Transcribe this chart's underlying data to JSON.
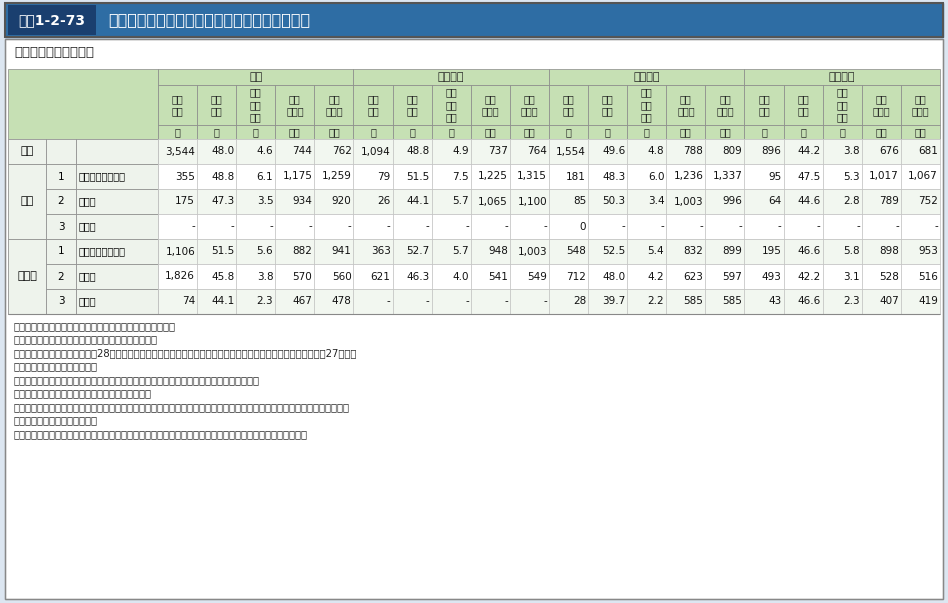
{
  "title": "図表1-2-73",
  "title_text": "職員１人当たり給与額（時給で支払われる者）",
  "subtitle": "＜放課後児童クラブ＞",
  "col_groups": [
    "全体",
    "公立公営",
    "公立民営",
    "民立民営"
  ],
  "col_subheaders": [
    "集計\n人数",
    "平均\n年齢",
    "平均\n勤続\n年数",
    "年間\n勤務量",
    "年間\n支給額"
  ],
  "col_units": [
    "人",
    "歳",
    "年",
    "時間",
    "千円"
  ],
  "main_row": {
    "label": "全体",
    "values": [
      [
        "3,544",
        "48.0",
        "4.6",
        "744",
        "762"
      ],
      [
        "1,094",
        "48.8",
        "4.9",
        "737",
        "764"
      ],
      [
        "1,554",
        "49.6",
        "4.8",
        "788",
        "809"
      ],
      [
        "896",
        "44.2",
        "3.8",
        "676",
        "681"
      ]
    ]
  },
  "sections": [
    {
      "label": "常勤",
      "sub_rows": [
        {
          "num": "1",
          "label": "放課後児童支援員",
          "values": [
            [
              "355",
              "48.8",
              "6.1",
              "1,175",
              "1,259"
            ],
            [
              "79",
              "51.5",
              "7.5",
              "1,225",
              "1,315"
            ],
            [
              "181",
              "48.3",
              "6.0",
              "1,236",
              "1,337"
            ],
            [
              "95",
              "47.5",
              "5.3",
              "1,017",
              "1,067"
            ]
          ]
        },
        {
          "num": "2",
          "label": "補助員",
          "values": [
            [
              "175",
              "47.3",
              "3.5",
              "934",
              "920"
            ],
            [
              "26",
              "44.1",
              "5.7",
              "1,065",
              "1,100"
            ],
            [
              "85",
              "50.3",
              "3.4",
              "1,003",
              "996"
            ],
            [
              "64",
              "44.6",
              "2.8",
              "789",
              "752"
            ]
          ]
        },
        {
          "num": "3",
          "label": "その他",
          "values": [
            [
              "-",
              "-",
              "-",
              "-",
              "-"
            ],
            [
              "-",
              "-",
              "-",
              "-",
              "-"
            ],
            [
              "0",
              "-",
              "-",
              "-",
              "-"
            ],
            [
              "-",
              "-",
              "-",
              "-",
              "-"
            ]
          ]
        }
      ]
    },
    {
      "label": "非常勤",
      "sub_rows": [
        {
          "num": "1",
          "label": "放課後児童支援員",
          "values": [
            [
              "1,106",
              "51.5",
              "5.6",
              "882",
              "941"
            ],
            [
              "363",
              "52.7",
              "5.7",
              "948",
              "1,003"
            ],
            [
              "548",
              "52.5",
              "5.4",
              "832",
              "899"
            ],
            [
              "195",
              "46.6",
              "5.8",
              "898",
              "953"
            ]
          ]
        },
        {
          "num": "2",
          "label": "補助員",
          "values": [
            [
              "1,826",
              "45.8",
              "3.8",
              "570",
              "560"
            ],
            [
              "621",
              "46.3",
              "4.0",
              "541",
              "549"
            ],
            [
              "712",
              "48.0",
              "4.2",
              "623",
              "597"
            ],
            [
              "493",
              "42.2",
              "3.1",
              "528",
              "516"
            ]
          ]
        },
        {
          "num": "3",
          "label": "その他",
          "values": [
            [
              "74",
              "44.1",
              "2.3",
              "467",
              "478"
            ],
            [
              "-",
              "-",
              "-",
              "-",
              "-"
            ],
            [
              "28",
              "39.7",
              "2.2",
              "585",
              "585"
            ],
            [
              "43",
              "46.6",
              "2.3",
              "407",
              "419"
            ]
          ]
        }
      ]
    }
  ],
  "notes": [
    "資料：厚生労働省子ども家庭局子育て支援課において作成。",
    "（注）　集計人数が１桁の場合は「－」としている。",
    "　　　「年間支給額」は、平成28年３月分の時給額に属性別の年間勤務量を乗じた金額と、手当の１２倍及び平成27年度分",
    "　　　の一時金を加えた金額。",
    "　　　「常勤」・・・・・施設で定めた勤務時間（所定労働時間）のすべてを勤務する者。",
    "　　　「非常勤」・・・・常勤職員以外の従事者。",
    "　　　「平均勤続年数」は、現に勤務している放課後児童クラブだけでなく、過去に勤務していた放課後児童クラブにおける",
    "　　　勤続年数も含めて算定。",
    "　　　「集計人数」は、内訳の集計に必要なデータが揃っているものの集計であるため、合計と一致しない。"
  ]
}
